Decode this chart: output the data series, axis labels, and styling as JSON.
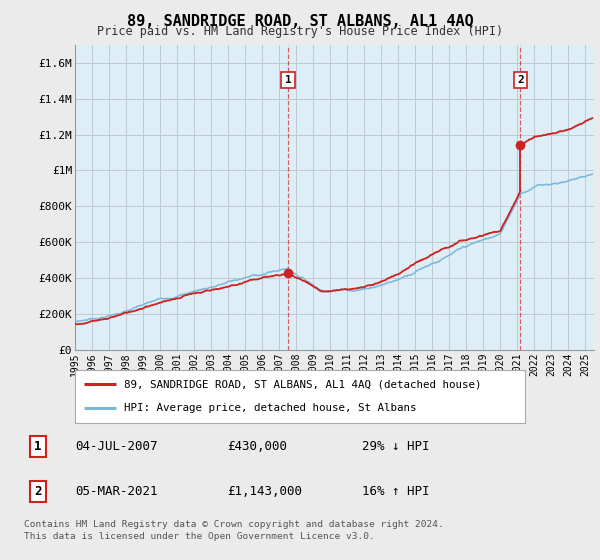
{
  "title": "89, SANDRIDGE ROAD, ST ALBANS, AL1 4AQ",
  "subtitle": "Price paid vs. HM Land Registry's House Price Index (HPI)",
  "ylabel_ticks": [
    "£0",
    "£200K",
    "£400K",
    "£600K",
    "£800K",
    "£1M",
    "£1.2M",
    "£1.4M",
    "£1.6M"
  ],
  "ytick_values": [
    0,
    200000,
    400000,
    600000,
    800000,
    1000000,
    1200000,
    1400000,
    1600000
  ],
  "ylim": [
    0,
    1700000
  ],
  "xlim_start": 1995.0,
  "xlim_end": 2025.5,
  "hpi_color": "#7ab8d9",
  "hpi_fill_color": "#ddeef7",
  "price_color": "#cc2222",
  "sale1_date": 2007.51,
  "sale1_price": 430000,
  "sale1_label": "1",
  "sale1_hpi_pct": "29% ↓ HPI",
  "sale1_date_str": "04-JUL-2007",
  "sale1_price_str": "£430,000",
  "sale2_date": 2021.18,
  "sale2_price": 1143000,
  "sale2_label": "2",
  "sale2_hpi_pct": "16% ↑ HPI",
  "sale2_date_str": "05-MAR-2021",
  "sale2_price_str": "£1,143,000",
  "legend_label1": "89, SANDRIDGE ROAD, ST ALBANS, AL1 4AQ (detached house)",
  "legend_label2": "HPI: Average price, detached house, St Albans",
  "footer1": "Contains HM Land Registry data © Crown copyright and database right 2024.",
  "footer2": "This data is licensed under the Open Government Licence v3.0.",
  "background_color": "#ebebeb",
  "plot_bg_color": "#ddeef7",
  "grid_color": "#c0c8d0"
}
